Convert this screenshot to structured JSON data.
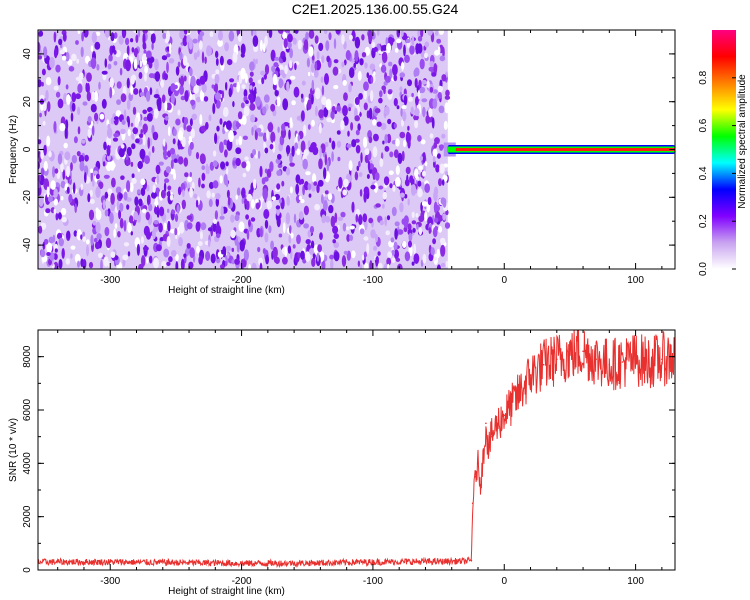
{
  "title": "C2E1.2025.136.00.55.G24",
  "chart_data": [
    {
      "type": "heatmap",
      "xlabel": "Height of straight line (km)",
      "ylabel": "Frequency (Hz)",
      "xlim": [
        -355,
        130
      ],
      "ylim": [
        -50,
        50
      ],
      "x_ticks": [
        -300,
        -200,
        -100,
        0,
        100
      ],
      "y_ticks": [
        -40,
        -20,
        0,
        20,
        40
      ],
      "noise_region_x": [
        -355,
        -43
      ],
      "tone_line_x": [
        -43,
        130
      ],
      "tone_frequency": 0,
      "colorbar": {
        "label": "Normalized spectral amplitude",
        "range": [
          0,
          1
        ],
        "ticks": [
          "0.0",
          "0.2",
          "0.4",
          "0.6",
          "0.8"
        ],
        "colors": [
          "#ffffff",
          "#c8a2f0",
          "#8000ff",
          "#0000ff",
          "#00ffff",
          "#00ff00",
          "#ffff00",
          "#ff8000",
          "#ff0000",
          "#ff0080"
        ]
      },
      "grid": false,
      "legend": "right colorbar"
    },
    {
      "type": "line",
      "xlabel": "Height of straight line (km)",
      "ylabel": "SNR (10 * v/v)",
      "xlim": [
        -355,
        130
      ],
      "ylim": [
        0,
        9000
      ],
      "x_ticks": [
        -300,
        -200,
        -100,
        0,
        100
      ],
      "y_ticks": [
        0,
        2000,
        4000,
        6000,
        8000
      ],
      "color": "#e8302e",
      "grid": false,
      "series": [
        {
          "x": [
            -355,
            -300,
            -250,
            -200,
            -150,
            -100,
            -50,
            -30,
            -25,
            -24,
            -22,
            -20,
            -18,
            -16,
            -14,
            -12,
            -10,
            -5,
            0,
            10,
            20,
            30,
            40,
            50,
            60,
            70,
            80,
            90,
            100,
            110,
            120,
            130
          ],
          "values": [
            300,
            300,
            280,
            250,
            260,
            300,
            320,
            330,
            350,
            2500,
            3500,
            4000,
            3200,
            4200,
            5500,
            4500,
            5000,
            5500,
            5800,
            6500,
            7300,
            7700,
            7900,
            8100,
            8200,
            7900,
            7700,
            7800,
            7900,
            7800,
            7900,
            8000
          ]
        }
      ]
    }
  ]
}
